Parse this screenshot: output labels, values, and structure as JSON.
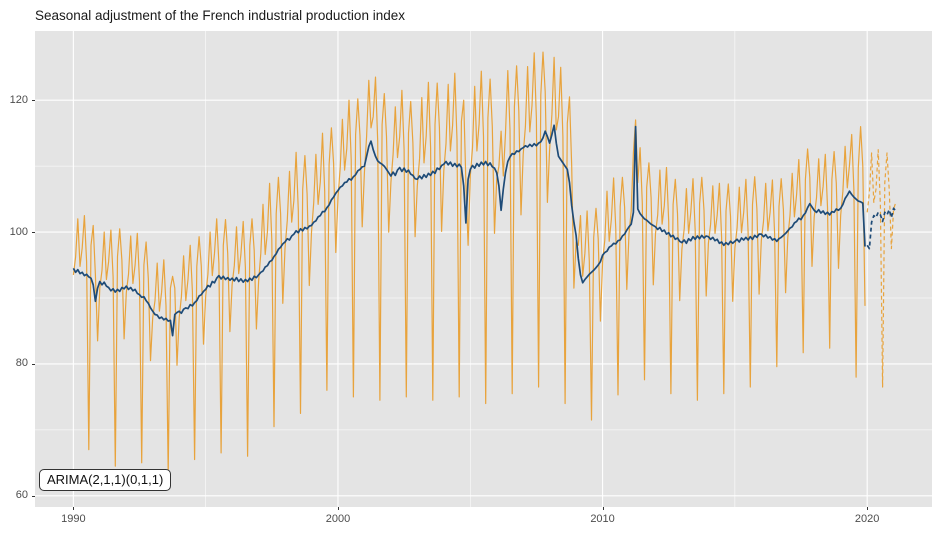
{
  "chart_data": {
    "type": "line",
    "title": "Seasonal adjustment of the French industrial production index",
    "model_label": "ARIMA(2,1,1)(0,1,1)",
    "x_unit": "monthly time series, years on x axis",
    "grid": "on",
    "legend": "none",
    "panel_color": "#E4E4E4",
    "grid_color": "#FFFFFF",
    "tick_text_color": "#4d4d4d",
    "axes": {
      "xlim": [
        1988.55,
        2022.45
      ],
      "ylim": [
        58.3,
        130.5
      ],
      "xticks": [
        1990,
        2000,
        2010,
        2020
      ],
      "xticks_minor": [
        1995,
        2005,
        2015
      ],
      "yticks": [
        60,
        80,
        100,
        120
      ],
      "yticks_minor": [
        70,
        90,
        110
      ]
    },
    "series": [
      {
        "name": "raw-index-observed",
        "color": "#E8A33C",
        "dash": "solid",
        "width": 1.2,
        "start": 1990.0,
        "step": 0.083333,
        "values": [
          93.5,
          96.2,
          102.0,
          94.8,
          97.6,
          102.5,
          95.5,
          67.0,
          98.0,
          101.0,
          93.5,
          83.5,
          91.5,
          94.2,
          100.0,
          92.8,
          95.5,
          100.3,
          93.2,
          64.5,
          96.3,
          100.5,
          95.7,
          83.8,
          90.8,
          93.6,
          99.4,
          92.2,
          95.0,
          99.8,
          92.5,
          65.0,
          95.0,
          98.5,
          93.0,
          80.5,
          87.0,
          89.6,
          95.3,
          88.0,
          90.9,
          95.8,
          88.8,
          63.5,
          91.5,
          93.3,
          91.5,
          79.8,
          87.0,
          90.2,
          96.4,
          89.6,
          92.8,
          98.0,
          91.0,
          65.5,
          94.8,
          99.3,
          94.8,
          83.0,
          90.3,
          93.6,
          100.0,
          93.4,
          96.8,
          102.0,
          95.2,
          66.5,
          98.0,
          101.9,
          96.8,
          84.9,
          92.0,
          94.9,
          100.8,
          93.7,
          96.6,
          101.6,
          94.6,
          66.0,
          97.9,
          102.0,
          97.2,
          85.3,
          92.5,
          96.8,
          104.2,
          96.6,
          100.0,
          107.4,
          98.8,
          70.5,
          102.8,
          108.3,
          102.8,
          89.2,
          97.5,
          101.8,
          109.2,
          101.5,
          104.8,
          112.1,
          103.3,
          72.5,
          106.5,
          111.6,
          105.8,
          91.9,
          100.0,
          104.4,
          111.8,
          104.2,
          107.6,
          115.0,
          106.2,
          76.0,
          110.2,
          115.8,
          110.4,
          96.9,
          105.3,
          109.7,
          117.1,
          109.4,
          112.7,
          120.0,
          111.0,
          75.0,
          114.8,
          120.2,
          114.6,
          100.8,
          109.0,
          114.5,
          123.0,
          115.8,
          117.5,
          123.5,
          113.8,
          74.5,
          116.3,
          121.0,
          114.5,
          100.0,
          107.5,
          111.8,
          119.0,
          111.3,
          114.5,
          121.5,
          112.5,
          75.0,
          115.0,
          119.8,
          113.5,
          99.3,
          107.0,
          111.2,
          120.4,
          110.5,
          114.6,
          122.7,
          112.8,
          74.5,
          116.3,
          122.6,
          115.9,
          100.1,
          109.3,
          113.4,
          122.4,
          112.3,
          116.2,
          124.1,
          114.0,
          75.0,
          116.8,
          120.0,
          107.4,
          98.0,
          108.5,
          112.8,
          122.1,
          112.3,
          116.4,
          124.4,
          114.5,
          74.0,
          117.3,
          123.2,
          116.0,
          99.8,
          108.0,
          110.0,
          115.3,
          108.5,
          115.0,
          124.5,
          115.5,
          75.5,
          119.0,
          125.2,
          118.4,
          102.6,
          111.8,
          116.0,
          125.1,
          115.2,
          119.2,
          127.2,
          117.2,
          76.5,
          120.8,
          127.3,
          121.3,
          104.5,
          112.5,
          117.8,
          126.5,
          115.5,
          117.5,
          125.0,
          114.5,
          74.0,
          116.5,
          120.5,
          110.0,
          91.5,
          98.5,
          98.0,
          102.5,
          93.3,
          96.8,
          103.2,
          95.6,
          71.5,
          99.2,
          103.6,
          99.0,
          86.5,
          95.5,
          98.8,
          106.2,
          98.6,
          102.0,
          108.2,
          100.4,
          75.3,
          103.9,
          108.3,
          103.8,
          91.3,
          99.8,
          103.2,
          112.0,
          117.0,
          107.5,
          112.8,
          104.4,
          77.6,
          106.8,
          110.5,
          105.2,
          92.0,
          99.8,
          102.6,
          109.4,
          101.2,
          104.0,
          109.8,
          101.6,
          75.5,
          104.2,
          108.0,
          102.8,
          89.6,
          97.4,
          100.5,
          106.6,
          99.8,
          103.0,
          108.1,
          100.2,
          74.5,
          104.3,
          108.3,
          103.3,
          90.3,
          98.3,
          101.2,
          107.0,
          99.8,
          102.6,
          107.4,
          99.2,
          75.5,
          103.2,
          107.3,
          102.4,
          89.5,
          97.6,
          100.7,
          106.8,
          99.9,
          103.0,
          108.0,
          100.0,
          76.5,
          104.2,
          108.4,
          103.5,
          90.6,
          98.7,
          101.6,
          107.4,
          100.2,
          103.0,
          107.9,
          99.8,
          79.6,
          103.9,
          108.1,
          103.4,
          90.8,
          99.2,
          102.5,
          108.9,
          102.3,
          105.7,
          111.0,
          103.0,
          81.7,
          108.0,
          112.6,
          108.3,
          94.8,
          102.3,
          105.2,
          111.1,
          104.0,
          106.9,
          111.8,
          103.8,
          82.4,
          108.0,
          112.2,
          107.4,
          94.5,
          102.6,
          106.2,
          113.0,
          106.7,
          110.2,
          114.8,
          106.4,
          78.0,
          109.8,
          116.0,
          110.0,
          88.8
        ]
      },
      {
        "name": "seasonally-adjusted",
        "color": "#1E4B77",
        "dash": "solid",
        "width": 1.7,
        "start": 1990.0,
        "step": 0.083333,
        "values": [
          94.5,
          93.9,
          94.3,
          93.7,
          93.9,
          93.4,
          93.6,
          93.2,
          93.0,
          92.0,
          89.5,
          91.5,
          92.5,
          92.0,
          92.4,
          91.8,
          91.6,
          91.1,
          91.4,
          90.9,
          91.3,
          91.0,
          91.6,
          91.4,
          91.8,
          91.3,
          91.6,
          91.1,
          91.3,
          90.7,
          90.5,
          90.1,
          90.2,
          89.6,
          89.2,
          88.5,
          88.0,
          87.5,
          87.4,
          86.9,
          87.1,
          86.7,
          86.9,
          86.5,
          86.6,
          84.3,
          87.5,
          87.8,
          88.0,
          87.7,
          88.3,
          88.5,
          88.4,
          89.0,
          88.8,
          89.3,
          89.6,
          90.3,
          90.5,
          91.0,
          91.3,
          91.9,
          91.7,
          92.5,
          92.3,
          93.0,
          93.4,
          92.9,
          93.3,
          92.8,
          93.1,
          92.7,
          93.0,
          92.6,
          93.1,
          92.5,
          92.9,
          92.4,
          92.8,
          92.5,
          93.0,
          92.7,
          93.3,
          93.1,
          93.5,
          93.9,
          94.1,
          94.7,
          94.9,
          95.5,
          95.7,
          96.3,
          96.7,
          97.4,
          97.7,
          98.2,
          98.5,
          99.0,
          98.8,
          99.4,
          99.7,
          100.2,
          99.9,
          100.5,
          100.2,
          100.7,
          100.5,
          100.9,
          101.0,
          101.5,
          101.7,
          102.3,
          102.5,
          103.1,
          103.1,
          103.7,
          104.1,
          104.9,
          105.3,
          105.9,
          106.3,
          106.8,
          107.0,
          107.5,
          107.6,
          108.1,
          107.9,
          108.4,
          108.7,
          109.3,
          109.5,
          109.9,
          110.0,
          111.5,
          113.0,
          113.8,
          112.5,
          111.5,
          110.8,
          110.5,
          110.3,
          110.0,
          109.5,
          109.0,
          108.5,
          109.1,
          108.6,
          109.4,
          109.8,
          109.2,
          109.7,
          109.1,
          109.4,
          108.8,
          108.6,
          108.1,
          108.0,
          108.5,
          108.1,
          108.7,
          108.3,
          108.9,
          108.6,
          109.2,
          108.9,
          109.7,
          109.5,
          110.1,
          110.3,
          110.7,
          110.2,
          110.6,
          110.0,
          110.4,
          109.9,
          110.3,
          109.8,
          107.0,
          101.4,
          108.0,
          109.5,
          110.1,
          109.7,
          110.4,
          110.0,
          110.6,
          110.2,
          110.7,
          110.1,
          110.5,
          109.9,
          109.7,
          109.0,
          107.0,
          103.3,
          106.5,
          109.0,
          110.7,
          111.4,
          111.9,
          111.8,
          112.3,
          112.2,
          112.6,
          112.8,
          113.1,
          112.9,
          113.3,
          113.0,
          113.4,
          113.1,
          113.5,
          113.7,
          114.3,
          115.3,
          114.5,
          113.5,
          114.8,
          116.2,
          113.5,
          111.5,
          111.0,
          110.5,
          110.0,
          109.5,
          107.5,
          104.0,
          101.5,
          99.5,
          96.0,
          93.5,
          92.3,
          92.8,
          93.2,
          93.6,
          93.9,
          94.2,
          94.6,
          95.0,
          95.5,
          96.5,
          96.9,
          97.1,
          97.7,
          97.9,
          98.3,
          98.2,
          98.7,
          98.8,
          99.4,
          99.7,
          100.3,
          100.8,
          101.2,
          103.0,
          116.0,
          103.5,
          102.8,
          102.4,
          102.0,
          101.8,
          101.5,
          101.2,
          101.0,
          100.8,
          100.4,
          100.7,
          100.1,
          100.3,
          99.7,
          99.9,
          99.3,
          99.5,
          98.9,
          99.1,
          98.6,
          98.4,
          98.8,
          98.3,
          99.0,
          98.7,
          99.3,
          98.9,
          99.4,
          99.0,
          99.5,
          99.1,
          99.4,
          99.3,
          98.9,
          99.2,
          98.7,
          98.9,
          98.3,
          98.5,
          98.0,
          98.4,
          98.1,
          98.6,
          98.3,
          98.6,
          98.9,
          98.5,
          99.1,
          98.8,
          99.2,
          98.8,
          99.3,
          98.9,
          99.5,
          99.2,
          99.7,
          99.7,
          99.3,
          99.6,
          99.1,
          99.3,
          98.8,
          99.0,
          98.6,
          99.0,
          99.2,
          99.5,
          99.8,
          100.2,
          100.6,
          100.8,
          101.4,
          101.6,
          102.1,
          101.9,
          102.5,
          102.9,
          103.7,
          104.3,
          103.8,
          103.3,
          103.0,
          103.4,
          102.9,
          103.2,
          102.7,
          103.0,
          102.6,
          103.1,
          103.0,
          103.5,
          103.3,
          103.6,
          104.2,
          105.1,
          105.6,
          106.2,
          105.7,
          105.3,
          105.0,
          104.7,
          104.6,
          104.4,
          97.8
        ]
      },
      {
        "name": "raw-index-forecast",
        "color": "#E8A33C",
        "dash": "dashed",
        "width": 1.2,
        "start": 2020.0,
        "step": 0.083333,
        "values": [
          103.0,
          106.0,
          112.0,
          104.5,
          106.5,
          112.5,
          104.0,
          76.5,
          107.5,
          112.0,
          106.5,
          97.5,
          103.5,
          104.5
        ]
      },
      {
        "name": "seasonally-adjusted-forecast",
        "color": "#1E4B77",
        "dash": "dashed",
        "width": 1.7,
        "start": 2020.0,
        "step": 0.083333,
        "values": [
          98.0,
          97.5,
          101.5,
          102.5,
          102.2,
          103.0,
          102.6,
          101.6,
          103.0,
          102.6,
          103.4,
          102.2,
          103.6,
          103.2
        ]
      }
    ]
  }
}
